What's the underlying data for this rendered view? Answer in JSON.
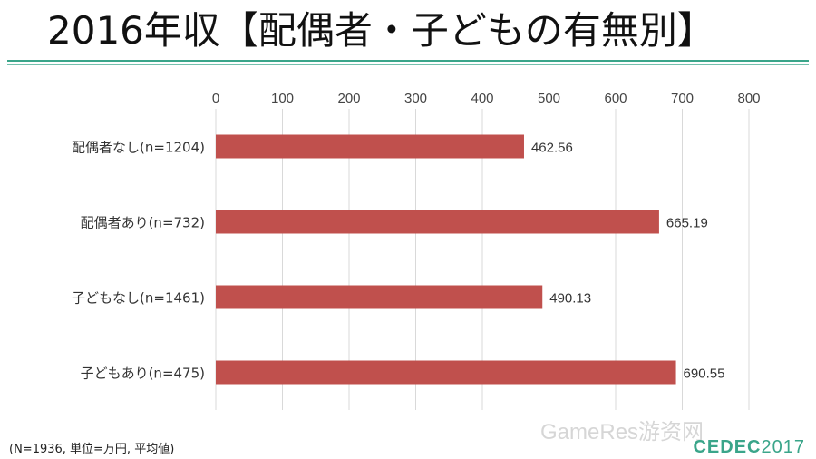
{
  "page": {
    "title": "2016年収【配偶者・子どもの有無別】",
    "note": "(N=1936, 単位=万円, 平均値)",
    "logo": "CEDEC",
    "logo_year": "2017",
    "watermark": "GameRes游资网"
  },
  "colors": {
    "bar": "#c0504d",
    "accent": "#3aa58a",
    "grid": "#d9d9d9"
  },
  "chart_data": {
    "type": "bar",
    "orientation": "horizontal",
    "categories": [
      "配偶者なし(n=1204)",
      "配偶者あり(n=732)",
      "子どもなし(n=1461)",
      "子どもあり(n=475)"
    ],
    "values": [
      462.56,
      665.19,
      490.13,
      690.55
    ],
    "value_labels": [
      "462.56",
      "665.19",
      "490.13",
      "690.55"
    ],
    "xlim": [
      0,
      800
    ],
    "ticks": [
      0,
      100,
      200,
      300,
      400,
      500,
      600,
      700,
      800
    ],
    "tick_labels": [
      "0",
      "100",
      "200",
      "300",
      "400",
      "500",
      "600",
      "700",
      "800"
    ],
    "axis_position": "top",
    "grid": true
  }
}
